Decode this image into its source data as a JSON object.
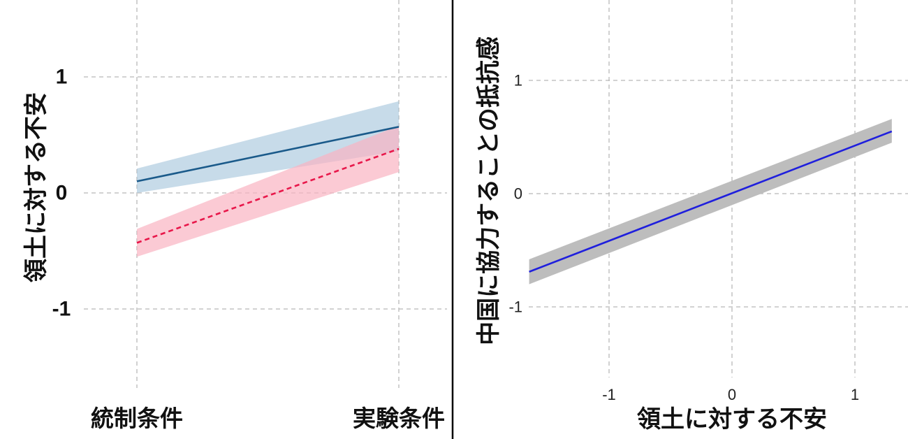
{
  "chart_data": [
    {
      "type": "line",
      "ylabel": "領土に対する不安",
      "categories": [
        "統制条件",
        "実験条件"
      ],
      "y_ticks": [
        "1",
        "0",
        "-1"
      ],
      "ylim": [
        -1.7,
        1.5
      ],
      "grid": "dashed",
      "series": [
        {
          "style": "solid",
          "color": "#1a5a8a",
          "band_color": "#a9c8dd",
          "values": [
            0.1,
            0.57
          ],
          "lower": [
            0.0,
            0.36
          ],
          "upper": [
            0.21,
            0.79
          ]
        },
        {
          "style": "dashed",
          "color": "#e8174a",
          "band_color": "#f9b3c2",
          "values": [
            -0.43,
            0.38
          ],
          "lower": [
            -0.55,
            0.18
          ],
          "upper": [
            -0.31,
            0.58
          ]
        }
      ]
    },
    {
      "type": "line",
      "xlabel": "領土に対する不安",
      "ylabel": "中国に協力することの抵抗感",
      "x_ticks": [
        "-1",
        "0",
        "1"
      ],
      "y_ticks": [
        "1",
        "0",
        "-1"
      ],
      "xlim": [
        -1.7,
        1.45
      ],
      "ylim": [
        -1.7,
        1.6
      ],
      "grid": "dashed",
      "series": [
        {
          "color": "#1f1fdd",
          "band_color": "#bdbdbd",
          "x": [
            -1.65,
            1.3
          ],
          "y": [
            -0.69,
            0.55
          ],
          "lower": [
            -0.8,
            0.45
          ],
          "upper": [
            -0.58,
            0.66
          ]
        }
      ]
    }
  ]
}
